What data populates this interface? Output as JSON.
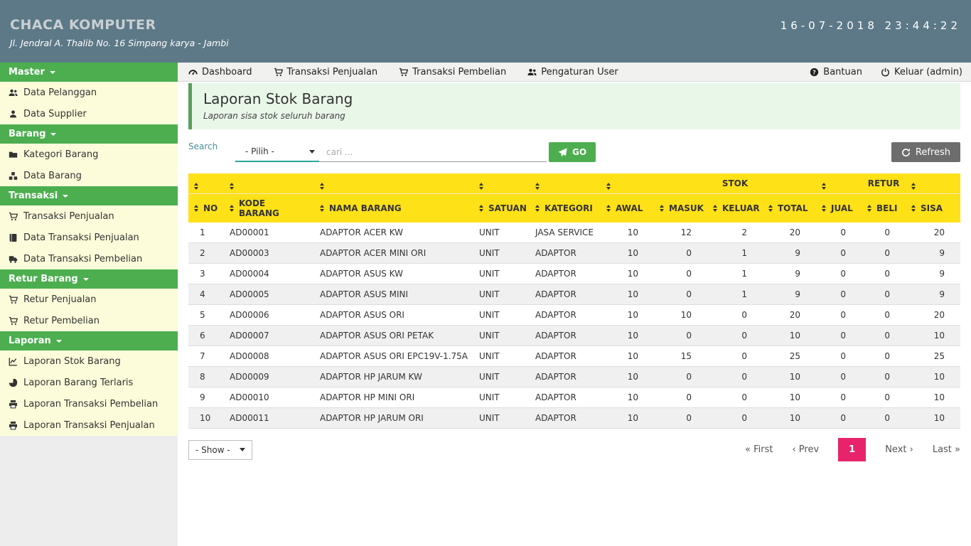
{
  "app": {
    "name": "CHACA KOMPUTER",
    "address": "Jl. Jendral A. Thalib No. 16 Simpang karya - Jambi",
    "clock": "16-07-2018 23:44:22"
  },
  "topnav": {
    "items": [
      {
        "label": "Dashboard",
        "icon": "gauge"
      },
      {
        "label": "Transaksi Penjualan",
        "icon": "cart"
      },
      {
        "label": "Transaksi Pembelian",
        "icon": "cart"
      },
      {
        "label": "Pengaturan User",
        "icon": "users"
      }
    ],
    "right_items": [
      {
        "label": "Bantuan",
        "icon": "question"
      },
      {
        "label": "Keluar (admin)",
        "icon": "power"
      }
    ]
  },
  "sidebar": {
    "sections": [
      {
        "label": "Master",
        "items": [
          {
            "label": "Data Pelanggan",
            "icon": "users"
          },
          {
            "label": "Data Supplier",
            "icon": "user"
          }
        ]
      },
      {
        "label": "Barang",
        "items": [
          {
            "label": "Kategori Barang",
            "icon": "folder"
          },
          {
            "label": "Data Barang",
            "icon": "cubes"
          }
        ]
      },
      {
        "label": "Transaksi",
        "items": [
          {
            "label": "Transaksi Penjualan",
            "icon": "cart"
          },
          {
            "label": "Data Transaksi Penjualan",
            "icon": "book"
          },
          {
            "label": "Data Transaksi Pembelian",
            "icon": "truck"
          }
        ]
      },
      {
        "label": "Retur Barang",
        "items": [
          {
            "label": "Retur Penjualan",
            "icon": "cart"
          },
          {
            "label": "Retur Pembelian",
            "icon": "cart"
          }
        ]
      },
      {
        "label": "Laporan",
        "items": [
          {
            "label": "Laporan Stok Barang",
            "icon": "chart"
          },
          {
            "label": "Laporan Barang Terlaris",
            "icon": "pie"
          },
          {
            "label": "Laporan Transaksi Pembelian",
            "icon": "printer"
          },
          {
            "label": "Laporan Transaksi Penjualan",
            "icon": "printer"
          }
        ]
      }
    ]
  },
  "page": {
    "title": "Laporan Stok Barang",
    "subtitle": "Laporan sisa stok seluruh barang"
  },
  "search": {
    "label": "Search",
    "filter_selected": "- Pilih -",
    "input_placeholder": "cari ...",
    "go_label": "GO",
    "refresh_label": "Refresh"
  },
  "table": {
    "group_headers": {
      "stok": "STOK",
      "retur": "RETUR"
    },
    "columns": [
      "NO",
      "KODE BARANG",
      "NAMA BARANG",
      "SATUAN",
      "KATEGORI",
      "AWAL",
      "MASUK",
      "KELUAR",
      "TOTAL",
      "JUAL",
      "BELI",
      "SISA"
    ],
    "column_keys": [
      "no",
      "kode-barang",
      "nama-barang",
      "satuan",
      "kategori",
      "awal",
      "masuk",
      "keluar",
      "total",
      "jual",
      "beli",
      "sisa"
    ],
    "rows": [
      [
        "1",
        "AD00001",
        "ADAPTOR ACER KW",
        "UNIT",
        "JASA SERVICE",
        "10",
        "12",
        "2",
        "20",
        "0",
        "0",
        "20"
      ],
      [
        "2",
        "AD00003",
        "ADAPTOR ACER MINI ORI",
        "UNIT",
        "ADAPTOR",
        "10",
        "0",
        "1",
        "9",
        "0",
        "0",
        "9"
      ],
      [
        "3",
        "AD00004",
        "ADAPTOR ASUS KW",
        "UNIT",
        "ADAPTOR",
        "10",
        "0",
        "1",
        "9",
        "0",
        "0",
        "9"
      ],
      [
        "4",
        "AD00005",
        "ADAPTOR ASUS MINI",
        "UNIT",
        "ADAPTOR",
        "10",
        "0",
        "1",
        "9",
        "0",
        "0",
        "9"
      ],
      [
        "5",
        "AD00006",
        "ADAPTOR ASUS ORI",
        "UNIT",
        "ADAPTOR",
        "10",
        "10",
        "0",
        "20",
        "0",
        "0",
        "20"
      ],
      [
        "6",
        "AD00007",
        "ADAPTOR ASUS ORI PETAK",
        "UNIT",
        "ADAPTOR",
        "10",
        "0",
        "0",
        "10",
        "0",
        "0",
        "10"
      ],
      [
        "7",
        "AD00008",
        "ADAPTOR ASUS ORI EPC19V-1.75A",
        "UNIT",
        "ADAPTOR",
        "10",
        "15",
        "0",
        "25",
        "0",
        "0",
        "25"
      ],
      [
        "8",
        "AD00009",
        "ADAPTOR HP JARUM KW",
        "UNIT",
        "ADAPTOR",
        "10",
        "0",
        "0",
        "10",
        "0",
        "0",
        "10"
      ],
      [
        "9",
        "AD00010",
        "ADAPTOR HP MINI ORI",
        "UNIT",
        "ADAPTOR",
        "10",
        "0",
        "0",
        "10",
        "0",
        "0",
        "10"
      ],
      [
        "10",
        "AD00011",
        "ADAPTOR HP JARUM ORI",
        "UNIT",
        "ADAPTOR",
        "10",
        "0",
        "0",
        "10",
        "0",
        "0",
        "10"
      ]
    ]
  },
  "footer": {
    "show_selected": "- Show -",
    "pagination": {
      "first": "« First",
      "prev": "‹ Prev",
      "page": "1",
      "next": "Next ›",
      "last": "Last »"
    }
  },
  "colors": {
    "header_bg": "#5d7987",
    "green": "#4cae4f",
    "table_header_yellow": "#ffe117",
    "sidebar_item_bg": "#fcfcdb",
    "active_page_pink": "#e7236b",
    "input_teal": "#26a69a",
    "refresh_gray": "#6d6d6d"
  }
}
